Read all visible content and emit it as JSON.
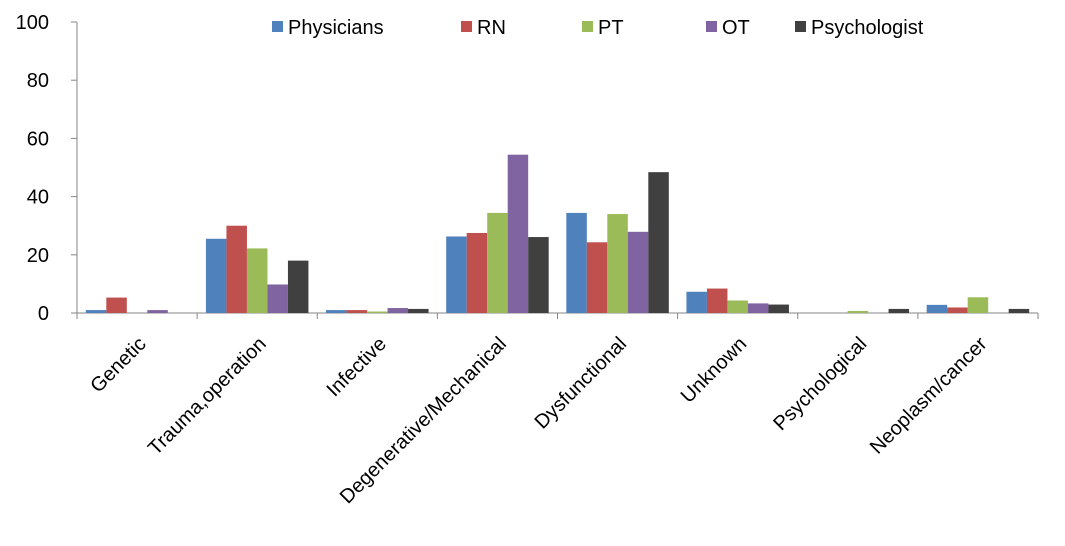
{
  "chart_data": {
    "type": "bar",
    "title": "",
    "xlabel": "",
    "ylabel": "",
    "ylim": [
      0,
      100
    ],
    "yticks": [
      "0",
      "20",
      "40",
      "60",
      "80",
      "100"
    ],
    "grid": false,
    "legend_position": "top",
    "categories": [
      "Genetic",
      "Trauma,operation",
      "Infective",
      "Degenerative/Mechanical",
      "Dysfunctional",
      "Unknown",
      "Psychological",
      "Neoplasm/cancer"
    ],
    "series": [
      {
        "name": "Physicians",
        "color": "#4f81bd",
        "values": [
          1,
          25.5,
          1,
          26.3,
          34.4,
          7.3,
          0,
          2.8
        ]
      },
      {
        "name": "RN",
        "color": "#c0504d",
        "values": [
          5.3,
          30,
          1,
          27.5,
          24.3,
          8.4,
          0,
          1.9
        ]
      },
      {
        "name": "PT",
        "color": "#9bbb59",
        "values": [
          0,
          22.2,
          0.5,
          34.4,
          34,
          4.3,
          0.7,
          5.4
        ]
      },
      {
        "name": "OT",
        "color": "#8064a2",
        "values": [
          1,
          9.8,
          1.7,
          54.4,
          27.9,
          3.3,
          0,
          0
        ]
      },
      {
        "name": "Psychologist",
        "color": "#404040",
        "values": [
          0,
          18,
          1.4,
          26.1,
          48.4,
          2.9,
          1.4,
          1.4
        ]
      }
    ]
  }
}
